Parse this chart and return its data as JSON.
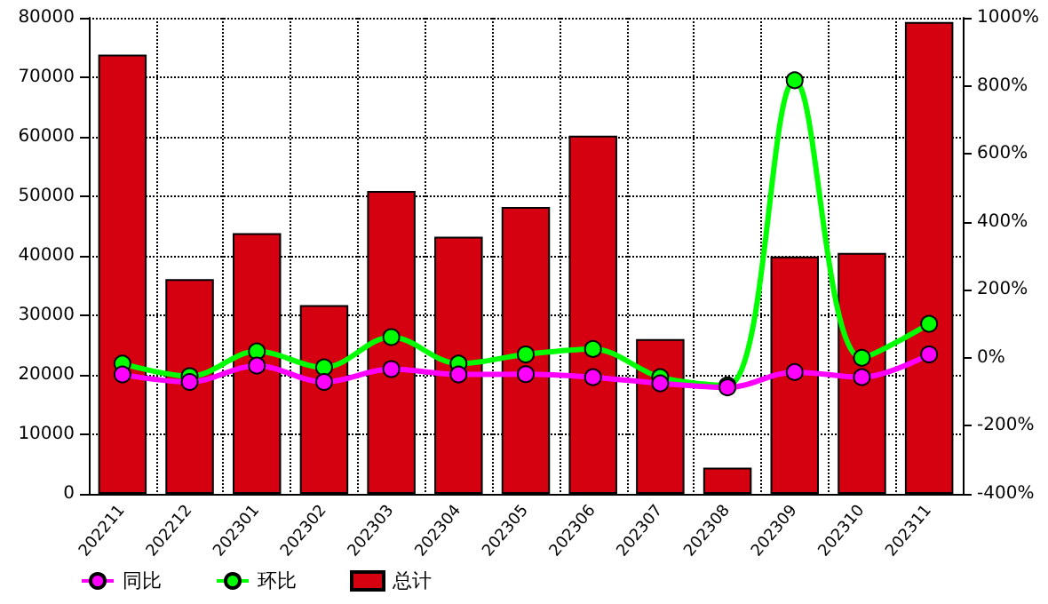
{
  "chart_data": {
    "type": "bar",
    "categories": [
      "202211",
      "202212",
      "202301",
      "202302",
      "202303",
      "202304",
      "202305",
      "202306",
      "202307",
      "202308",
      "202309",
      "202310",
      "202311"
    ],
    "series": [
      {
        "name": "同比",
        "type": "line",
        "axis": "y2",
        "color": "#ff00ff",
        "values": [
          -49,
          -71,
          -23,
          -71,
          -33,
          -49,
          -48,
          -57,
          -75,
          -87,
          -42,
          -57,
          10
        ]
      },
      {
        "name": "环比",
        "type": "line",
        "axis": "y2",
        "color": "#00ff00",
        "values": [
          -17,
          -54,
          19,
          -28,
          61,
          -17,
          10,
          26,
          -57,
          -81,
          816,
          0,
          100
        ]
      },
      {
        "name": "总计",
        "color": "#d50010",
        "values": [
          73800,
          36100,
          43800,
          31700,
          50900,
          43200,
          48200,
          60200,
          26000,
          4400,
          39900,
          40500,
          79300
        ]
      }
    ],
    "ylim": [
      0,
      80000
    ],
    "yticks": [
      0,
      10000,
      20000,
      30000,
      40000,
      50000,
      60000,
      70000,
      80000
    ],
    "y2lim": [
      -400,
      1000
    ],
    "y2ticks": [
      {
        "value": -400,
        "label": "-400%"
      },
      {
        "value": -200,
        "label": "-200%"
      },
      {
        "value": 0,
        "label": "0%"
      },
      {
        "value": 200,
        "label": "200%"
      },
      {
        "value": 400,
        "label": "400%"
      },
      {
        "value": 600,
        "label": "600%"
      },
      {
        "value": 800,
        "label": "800%"
      },
      {
        "value": 1000,
        "label": "1000%"
      }
    ],
    "grid": true,
    "legend": "bottom left",
    "marker": "circle",
    "line_style": "solid"
  }
}
